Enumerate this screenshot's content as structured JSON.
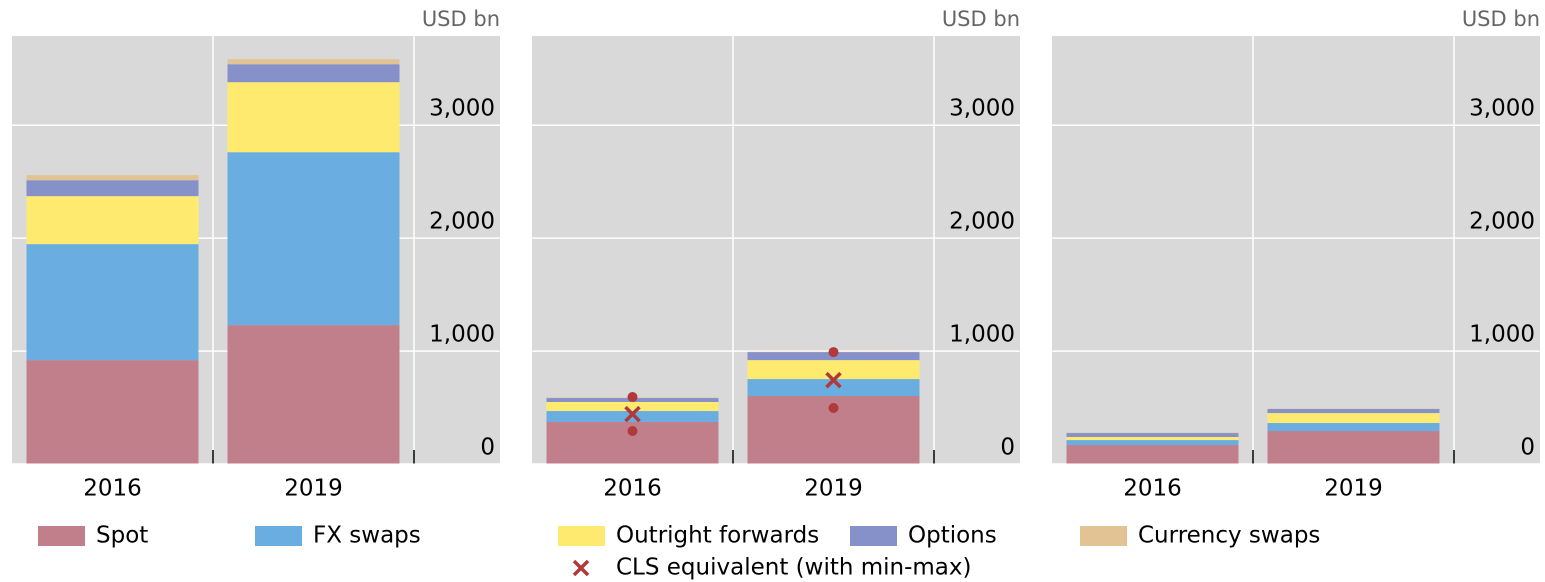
{
  "legend": [
    {
      "name": "Spot",
      "color": "#c17f8c"
    },
    {
      "name": "FX swaps",
      "color": "#6aade0"
    },
    {
      "name": "Outright forwards",
      "color": "#fdea6f"
    },
    {
      "name": "Options",
      "color": "#8591c8"
    },
    {
      "name": "Currency swaps",
      "color": "#e2c393"
    }
  ],
  "chart_data": [
    {
      "type": "bar",
      "stacked": true,
      "unit": "USD bn",
      "categories": [
        "2016",
        "2019"
      ],
      "series": [
        {
          "values": [
            920,
            1230
          ]
        },
        {
          "values": [
            1027,
            1531
          ]
        },
        {
          "values": [
            425,
            620
          ]
        },
        {
          "values": [
            141,
            159
          ]
        },
        {
          "values": [
            45,
            44
          ]
        }
      ],
      "ylim": [
        0,
        3790
      ],
      "yticks": [
        0,
        {
          "value": 1000,
          "label": "1,000"
        },
        {
          "value": 2000,
          "label": "2,000"
        },
        {
          "value": 3000,
          "label": "3,000"
        }
      ],
      "grid": true
    },
    {
      "type": "bar",
      "stacked": true,
      "unit": "USD bn",
      "categories": [
        "2016",
        "2019"
      ],
      "series": [
        {
          "values": [
            372,
            602
          ]
        },
        {
          "values": [
            97,
            150
          ]
        },
        {
          "values": [
            80,
            168
          ]
        },
        {
          "values": [
            35,
            71
          ]
        },
        {
          "values": [
            5,
            3
          ]
        }
      ],
      "markers": {
        "name": "CLS equivalent (with min-max)",
        "color": "#b03a3a",
        "values": [
          442,
          743
        ],
        "min": [
          292,
          496
        ],
        "max": [
          593,
          991
        ]
      },
      "ylim": [
        0,
        3790
      ],
      "yticks": [
        0,
        {
          "value": 1000,
          "label": "1,000"
        },
        {
          "value": 2000,
          "label": "2,000"
        },
        {
          "value": 3000,
          "label": "3,000"
        }
      ],
      "grid": true
    },
    {
      "type": "bar",
      "stacked": true,
      "unit": "USD bn",
      "categories": [
        "2016",
        "2019"
      ],
      "series": [
        {
          "values": [
            168,
            292
          ]
        },
        {
          "values": [
            44,
            71
          ]
        },
        {
          "values": [
            27,
            88
          ]
        },
        {
          "values": [
            35,
            36
          ]
        },
        {
          "values": [
            4,
            3
          ]
        }
      ],
      "ylim": [
        0,
        3790
      ],
      "yticks": [
        0,
        {
          "value": 1000,
          "label": "1,000"
        },
        {
          "value": 2000,
          "label": "2,000"
        },
        {
          "value": 3000,
          "label": "3,000"
        }
      ],
      "grid": true
    }
  ]
}
